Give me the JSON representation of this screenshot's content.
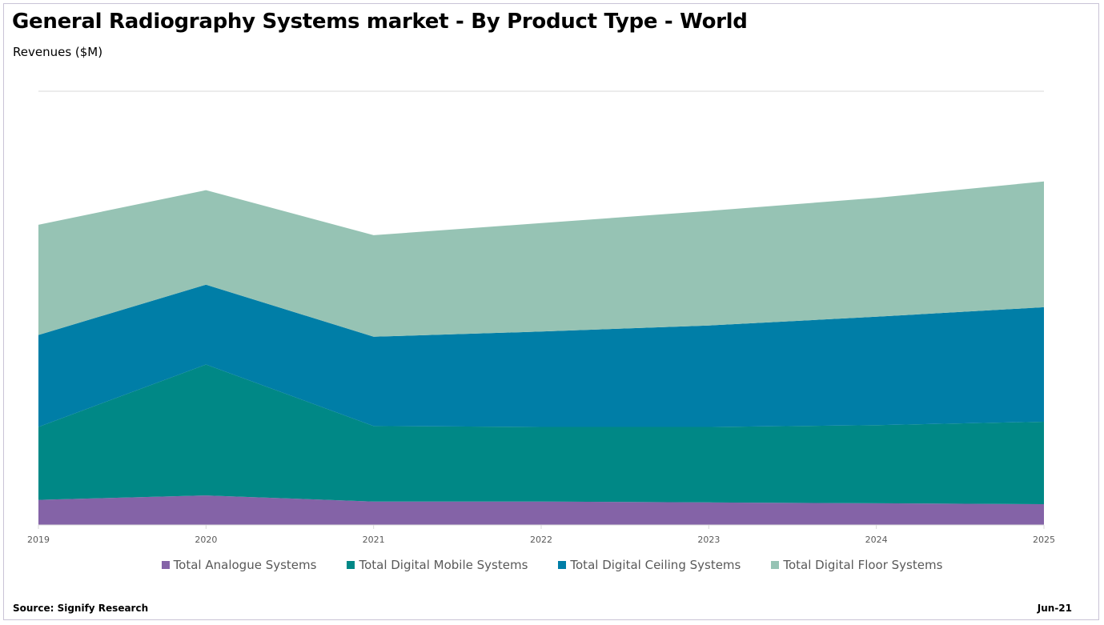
{
  "header": {
    "title": "General Radiography Systems market - By Product Type - World",
    "subtitle": "Revenues ($M)"
  },
  "footer": {
    "source": "Source: Signify Research",
    "date": "Jun-21"
  },
  "chart_data": {
    "type": "area",
    "stacked": true,
    "title": "General Radiography Systems market - By Product Type - World",
    "ylabel": "Revenues ($M)",
    "xlabel": "",
    "x": [
      "2019",
      "2020",
      "2021",
      "2022",
      "2023",
      "2024",
      "2025"
    ],
    "ylim": [
      0,
      5
    ],
    "y_tick_labels_shown": false,
    "grid": "horizontal",
    "legend": "bottom",
    "series": [
      {
        "name": "Total Analogue Systems",
        "color": "#8463a7",
        "values": [
          0.29,
          0.34,
          0.27,
          0.27,
          0.26,
          0.25,
          0.24
        ]
      },
      {
        "name": "Total Digital Mobile Systems",
        "color": "#008886",
        "values": [
          0.84,
          1.51,
          0.87,
          0.86,
          0.87,
          0.9,
          0.95
        ]
      },
      {
        "name": "Total Digital Ceiling Systems",
        "color": "#007ea7",
        "values": [
          1.06,
          0.92,
          1.03,
          1.1,
          1.17,
          1.25,
          1.32
        ]
      },
      {
        "name": "Total Digital Floor Systems",
        "color": "#96c3b4",
        "values": [
          1.27,
          1.09,
          1.17,
          1.25,
          1.32,
          1.37,
          1.45
        ]
      }
    ]
  }
}
